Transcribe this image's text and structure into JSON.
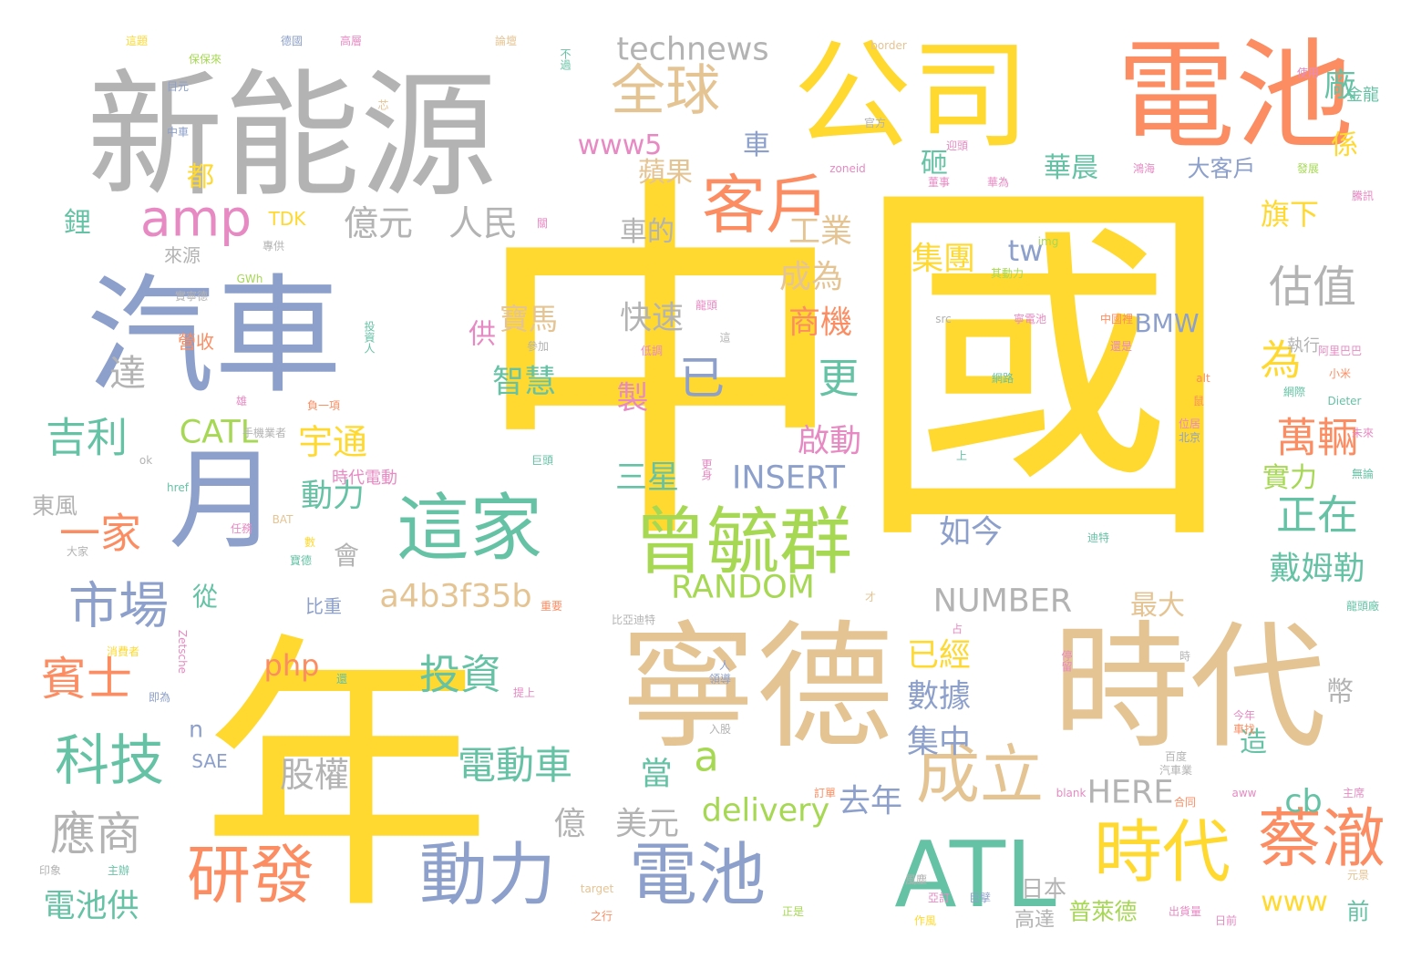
{
  "palette": {
    "yellow": "#FFD92F",
    "tan": "#E5C494",
    "grey": "#B3B3B3",
    "orange": "#FC8D62",
    "blue": "#8DA0CB",
    "green": "#66C2A5",
    "pink": "#E78AC3",
    "lime": "#A6D854"
  },
  "words": [
    {
      "text": "中國",
      "color": "yellow"
    },
    {
      "text": "年",
      "color": "yellow"
    },
    {
      "text": "寧德",
      "color": "tan"
    },
    {
      "text": "時代",
      "color": "tan"
    },
    {
      "text": "新能源",
      "color": "grey"
    },
    {
      "text": "公司",
      "color": "yellow"
    },
    {
      "text": "電池",
      "color": "orange"
    },
    {
      "text": "汽車",
      "color": "blue"
    },
    {
      "text": "月",
      "color": "blue"
    },
    {
      "text": "ATL",
      "color": "green"
    },
    {
      "text": "曾毓群",
      "color": "lime"
    },
    {
      "text": "這家",
      "color": "green"
    },
    {
      "text": "客戶",
      "color": "orange"
    },
    {
      "text": "動力",
      "color": "blue"
    },
    {
      "text": "電池",
      "color": "blue"
    },
    {
      "text": "研發",
      "color": "orange"
    },
    {
      "text": "時代",
      "color": "yellow"
    },
    {
      "text": "蔡澈",
      "color": "orange"
    },
    {
      "text": "成立",
      "color": "tan"
    },
    {
      "text": "全球",
      "color": "tan"
    },
    {
      "text": "technews",
      "color": "grey"
    },
    {
      "text": "amp",
      "color": "pink"
    },
    {
      "text": "科技",
      "color": "green"
    },
    {
      "text": "市場",
      "color": "blue"
    },
    {
      "text": "應商",
      "color": "grey"
    },
    {
      "text": "賓士",
      "color": "orange"
    },
    {
      "text": "一家",
      "color": "orange"
    },
    {
      "text": "吉利",
      "color": "green"
    },
    {
      "text": "達",
      "color": "grey"
    },
    {
      "text": "億元",
      "color": "grey"
    },
    {
      "text": "人民",
      "color": "grey"
    },
    {
      "text": "投資",
      "color": "green"
    },
    {
      "text": "電動車",
      "color": "green"
    },
    {
      "text": "a4b3f35b",
      "color": "tan"
    },
    {
      "text": "RANDOM",
      "color": "lime"
    },
    {
      "text": "NUMBER",
      "color": "grey"
    },
    {
      "text": "估值",
      "color": "grey"
    },
    {
      "text": "為",
      "color": "yellow"
    },
    {
      "text": "萬輛",
      "color": "orange"
    },
    {
      "text": "正在",
      "color": "green"
    },
    {
      "text": "戴姆勒",
      "color": "green"
    },
    {
      "text": "旗下",
      "color": "yellow"
    },
    {
      "text": "實力",
      "color": "lime"
    },
    {
      "text": "廠",
      "color": "green"
    },
    {
      "text": "係",
      "color": "yellow"
    },
    {
      "text": "www5",
      "color": "pink"
    },
    {
      "text": "華晨",
      "color": "green"
    },
    {
      "text": "大客戶",
      "color": "blue"
    },
    {
      "text": "集團",
      "color": "yellow"
    },
    {
      "text": "tw",
      "color": "blue"
    },
    {
      "text": "BMW",
      "color": "blue"
    },
    {
      "text": "已",
      "color": "blue"
    },
    {
      "text": "更",
      "color": "green"
    },
    {
      "text": "工業",
      "color": "tan"
    },
    {
      "text": "成為",
      "color": "tan"
    },
    {
      "text": "商機",
      "color": "orange"
    },
    {
      "text": "快速",
      "color": "grey"
    },
    {
      "text": "寶馬",
      "color": "tan"
    },
    {
      "text": "智慧",
      "color": "green"
    },
    {
      "text": "宇通",
      "color": "yellow"
    },
    {
      "text": "動力",
      "color": "green"
    },
    {
      "text": "CATL",
      "color": "lime"
    },
    {
      "text": "INSERT",
      "color": "blue"
    },
    {
      "text": "三星",
      "color": "green"
    },
    {
      "text": "啟動",
      "color": "pink"
    },
    {
      "text": "如今",
      "color": "blue"
    },
    {
      "text": "已經",
      "color": "yellow"
    },
    {
      "text": "數據",
      "color": "blue"
    },
    {
      "text": "集中",
      "color": "blue"
    },
    {
      "text": "股權",
      "color": "grey"
    },
    {
      "text": "當",
      "color": "green"
    },
    {
      "text": "a",
      "color": "lime"
    },
    {
      "text": "億",
      "color": "grey"
    },
    {
      "text": "美元",
      "color": "grey"
    },
    {
      "text": "delivery",
      "color": "lime"
    },
    {
      "text": "去年",
      "color": "blue"
    },
    {
      "text": "HERE",
      "color": "grey"
    },
    {
      "text": "cb",
      "color": "green"
    },
    {
      "text": "www",
      "color": "yellow"
    },
    {
      "text": "電池供",
      "color": "green"
    },
    {
      "text": "php",
      "color": "orange"
    },
    {
      "text": "製",
      "color": "pink"
    },
    {
      "text": "造",
      "color": "green"
    },
    {
      "text": "幣",
      "color": "grey"
    },
    {
      "text": "最大",
      "color": "tan"
    },
    {
      "text": "車的",
      "color": "grey"
    },
    {
      "text": "蘋果",
      "color": "tan"
    },
    {
      "text": "砸",
      "color": "green"
    },
    {
      "text": "車",
      "color": "blue"
    },
    {
      "text": "都",
      "color": "yellow"
    },
    {
      "text": "鋰",
      "color": "green"
    },
    {
      "text": "東風",
      "color": "grey"
    },
    {
      "text": "從",
      "color": "green"
    },
    {
      "text": "會",
      "color": "grey"
    },
    {
      "text": "供",
      "color": "pink"
    },
    {
      "text": "n",
      "color": "blue"
    },
    {
      "text": "SAE",
      "color": "blue"
    },
    {
      "text": "TDK",
      "color": "yellow"
    },
    {
      "text": "來源",
      "color": "grey"
    },
    {
      "text": "營收",
      "color": "orange"
    },
    {
      "text": "日本",
      "color": "grey"
    },
    {
      "text": "高達",
      "color": "grey"
    },
    {
      "text": "普萊德",
      "color": "lime"
    },
    {
      "text": "前",
      "color": "green"
    },
    {
      "text": "時代電動",
      "color": "pink"
    },
    {
      "text": "比重",
      "color": "blue"
    },
    {
      "text": "執行",
      "color": "grey"
    },
    {
      "text": "金龍",
      "color": "green"
    },
    {
      "text": "使用",
      "color": "pink"
    },
    {
      "text": "發展",
      "color": "lime"
    },
    {
      "text": "騰訊",
      "color": "pink"
    },
    {
      "text": "董事",
      "color": "pink"
    },
    {
      "text": "華為",
      "color": "pink"
    },
    {
      "text": "官方",
      "color": "grey"
    },
    {
      "text": "迎頭",
      "color": "pink"
    },
    {
      "text": "鴻海",
      "color": "pink"
    },
    {
      "text": "zoneid",
      "color": "pink"
    },
    {
      "text": "img",
      "color": "lime"
    },
    {
      "text": "其動力",
      "color": "lime"
    },
    {
      "text": "src",
      "color": "grey"
    },
    {
      "text": "寧電池",
      "color": "pink"
    },
    {
      "text": "中國裡",
      "color": "orange"
    },
    {
      "text": "還是",
      "color": "pink"
    },
    {
      "text": "網路",
      "color": "green"
    },
    {
      "text": "alt",
      "color": "orange"
    },
    {
      "text": "鼠",
      "color": "orange"
    },
    {
      "text": "位居",
      "color": "pink"
    },
    {
      "text": "北京",
      "color": "blue"
    },
    {
      "text": "上",
      "color": "green"
    },
    {
      "text": "迪特",
      "color": "green"
    },
    {
      "text": "阿里巴巴",
      "color": "pink"
    },
    {
      "text": "小米",
      "color": "orange"
    },
    {
      "text": "網際",
      "color": "green"
    },
    {
      "text": "Dieter",
      "color": "green"
    },
    {
      "text": "未來",
      "color": "pink"
    },
    {
      "text": "無論",
      "color": "green"
    },
    {
      "text": "保保來",
      "color": "lime"
    },
    {
      "text": "目元",
      "color": "blue"
    },
    {
      "text": "中車",
      "color": "blue"
    },
    {
      "text": "德國",
      "color": "blue"
    },
    {
      "text": "高層",
      "color": "pink"
    },
    {
      "text": "論壇",
      "color": "tan"
    },
    {
      "text": "不過",
      "color": "green"
    },
    {
      "text": "這題",
      "color": "yellow"
    },
    {
      "text": "border",
      "color": "tan"
    },
    {
      "text": "芯",
      "color": "tan"
    },
    {
      "text": "關",
      "color": "pink"
    },
    {
      "text": "專供",
      "color": "grey"
    },
    {
      "text": "實寧德",
      "color": "grey"
    },
    {
      "text": "龍頭",
      "color": "pink"
    },
    {
      "text": "低調",
      "color": "pink"
    },
    {
      "text": "參加",
      "color": "grey"
    },
    {
      "text": "投資人",
      "color": "green"
    },
    {
      "text": "這",
      "color": "grey"
    },
    {
      "text": "雄",
      "color": "pink"
    },
    {
      "text": "負一項",
      "color": "orange"
    },
    {
      "text": "手機業者",
      "color": "grey"
    },
    {
      "text": "ok",
      "color": "grey"
    },
    {
      "text": "href",
      "color": "green"
    },
    {
      "text": "任務",
      "color": "pink"
    },
    {
      "text": "BAT",
      "color": "tan"
    },
    {
      "text": "數",
      "color": "yellow"
    },
    {
      "text": "寶德",
      "color": "green"
    },
    {
      "text": "大家",
      "color": "grey"
    },
    {
      "text": "巨頭",
      "color": "green"
    },
    {
      "text": "更身",
      "color": "pink"
    },
    {
      "text": "才",
      "color": "tan"
    },
    {
      "text": "占",
      "color": "pink"
    },
    {
      "text": "比亞迪特",
      "color": "grey"
    },
    {
      "text": "重要",
      "color": "orange"
    },
    {
      "text": "消費者",
      "color": "yellow"
    },
    {
      "text": "Zetsche",
      "color": "pink"
    },
    {
      "text": "還",
      "color": "green"
    },
    {
      "text": "人",
      "color": "blue"
    },
    {
      "text": "領導",
      "color": "blue"
    },
    {
      "text": "停留",
      "color": "pink"
    },
    {
      "text": "時",
      "color": "grey"
    },
    {
      "text": "提上",
      "color": "pink"
    },
    {
      "text": "入股",
      "color": "grey"
    },
    {
      "text": "即為",
      "color": "blue"
    },
    {
      "text": "今年",
      "color": "pink"
    },
    {
      "text": "車找",
      "color": "orange"
    },
    {
      "text": "百度",
      "color": "grey"
    },
    {
      "text": "汽車業",
      "color": "grey"
    },
    {
      "text": "龍頭廠",
      "color": "green"
    },
    {
      "text": "aww",
      "color": "pink"
    },
    {
      "text": "blank",
      "color": "pink"
    },
    {
      "text": "訂單",
      "color": "orange"
    },
    {
      "text": "合同",
      "color": "orange"
    },
    {
      "text": "主席",
      "color": "pink"
    },
    {
      "text": "印象",
      "color": "grey"
    },
    {
      "text": "主辦",
      "color": "green"
    },
    {
      "text": "target",
      "color": "tan"
    },
    {
      "text": "風塵",
      "color": "grey"
    },
    {
      "text": "亞訂",
      "color": "pink"
    },
    {
      "text": "正是",
      "color": "lime"
    },
    {
      "text": "作風",
      "color": "yellow"
    },
    {
      "text": "巨擘",
      "color": "blue"
    },
    {
      "text": "之行",
      "color": "orange"
    },
    {
      "text": "出貨量",
      "color": "pink"
    },
    {
      "text": "日前",
      "color": "pink"
    },
    {
      "text": "元景",
      "color": "tan"
    },
    {
      "text": "GWh",
      "color": "lime"
    }
  ]
}
